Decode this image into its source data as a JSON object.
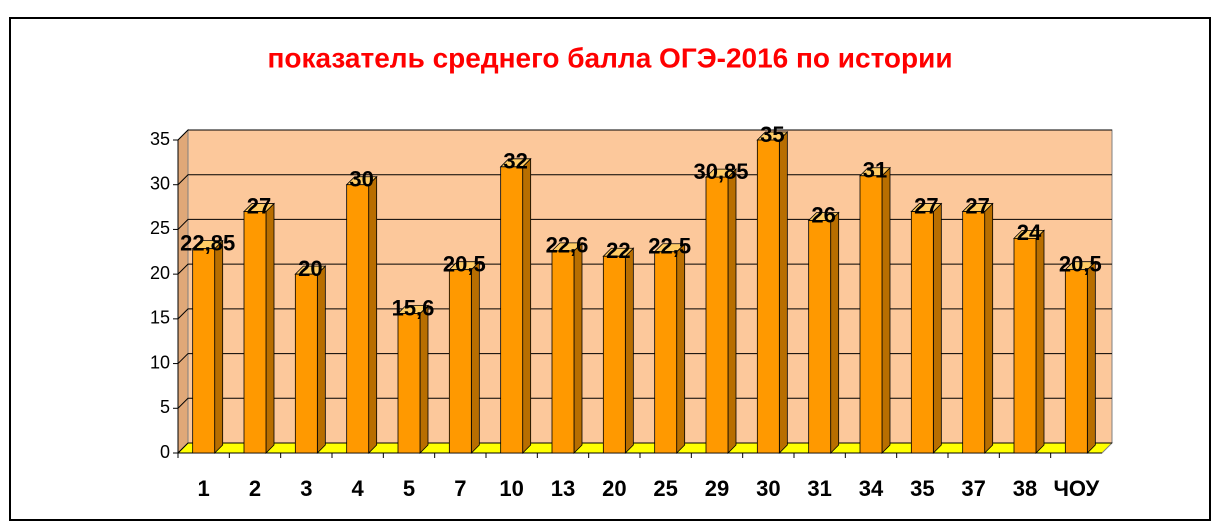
{
  "chart_data": {
    "type": "bar3d",
    "title": "показатель среднего балла ОГЭ-2016 по истории",
    "categories": [
      "1",
      "2",
      "3",
      "4",
      "5",
      "7",
      "10",
      "13",
      "20",
      "25",
      "29",
      "30",
      "31",
      "34",
      "35",
      "37",
      "38",
      "ЧОУ"
    ],
    "values": [
      22.85,
      27,
      20,
      30,
      15.6,
      20.5,
      32,
      22.6,
      22,
      22.5,
      30.85,
      35,
      26,
      31,
      27,
      27,
      24,
      20.5
    ],
    "value_labels": [
      "22,85",
      "27",
      "20",
      "30",
      "15,6",
      "20,5",
      "32",
      "22,6",
      "22",
      "22,5",
      "30,85",
      "35",
      "26",
      "31",
      "27",
      "27",
      "24",
      "20,5"
    ],
    "color": "#ff9900",
    "ylim": [
      0,
      35
    ],
    "yticks": [
      0,
      5,
      10,
      15,
      20,
      25,
      30,
      35
    ],
    "grid": true
  }
}
